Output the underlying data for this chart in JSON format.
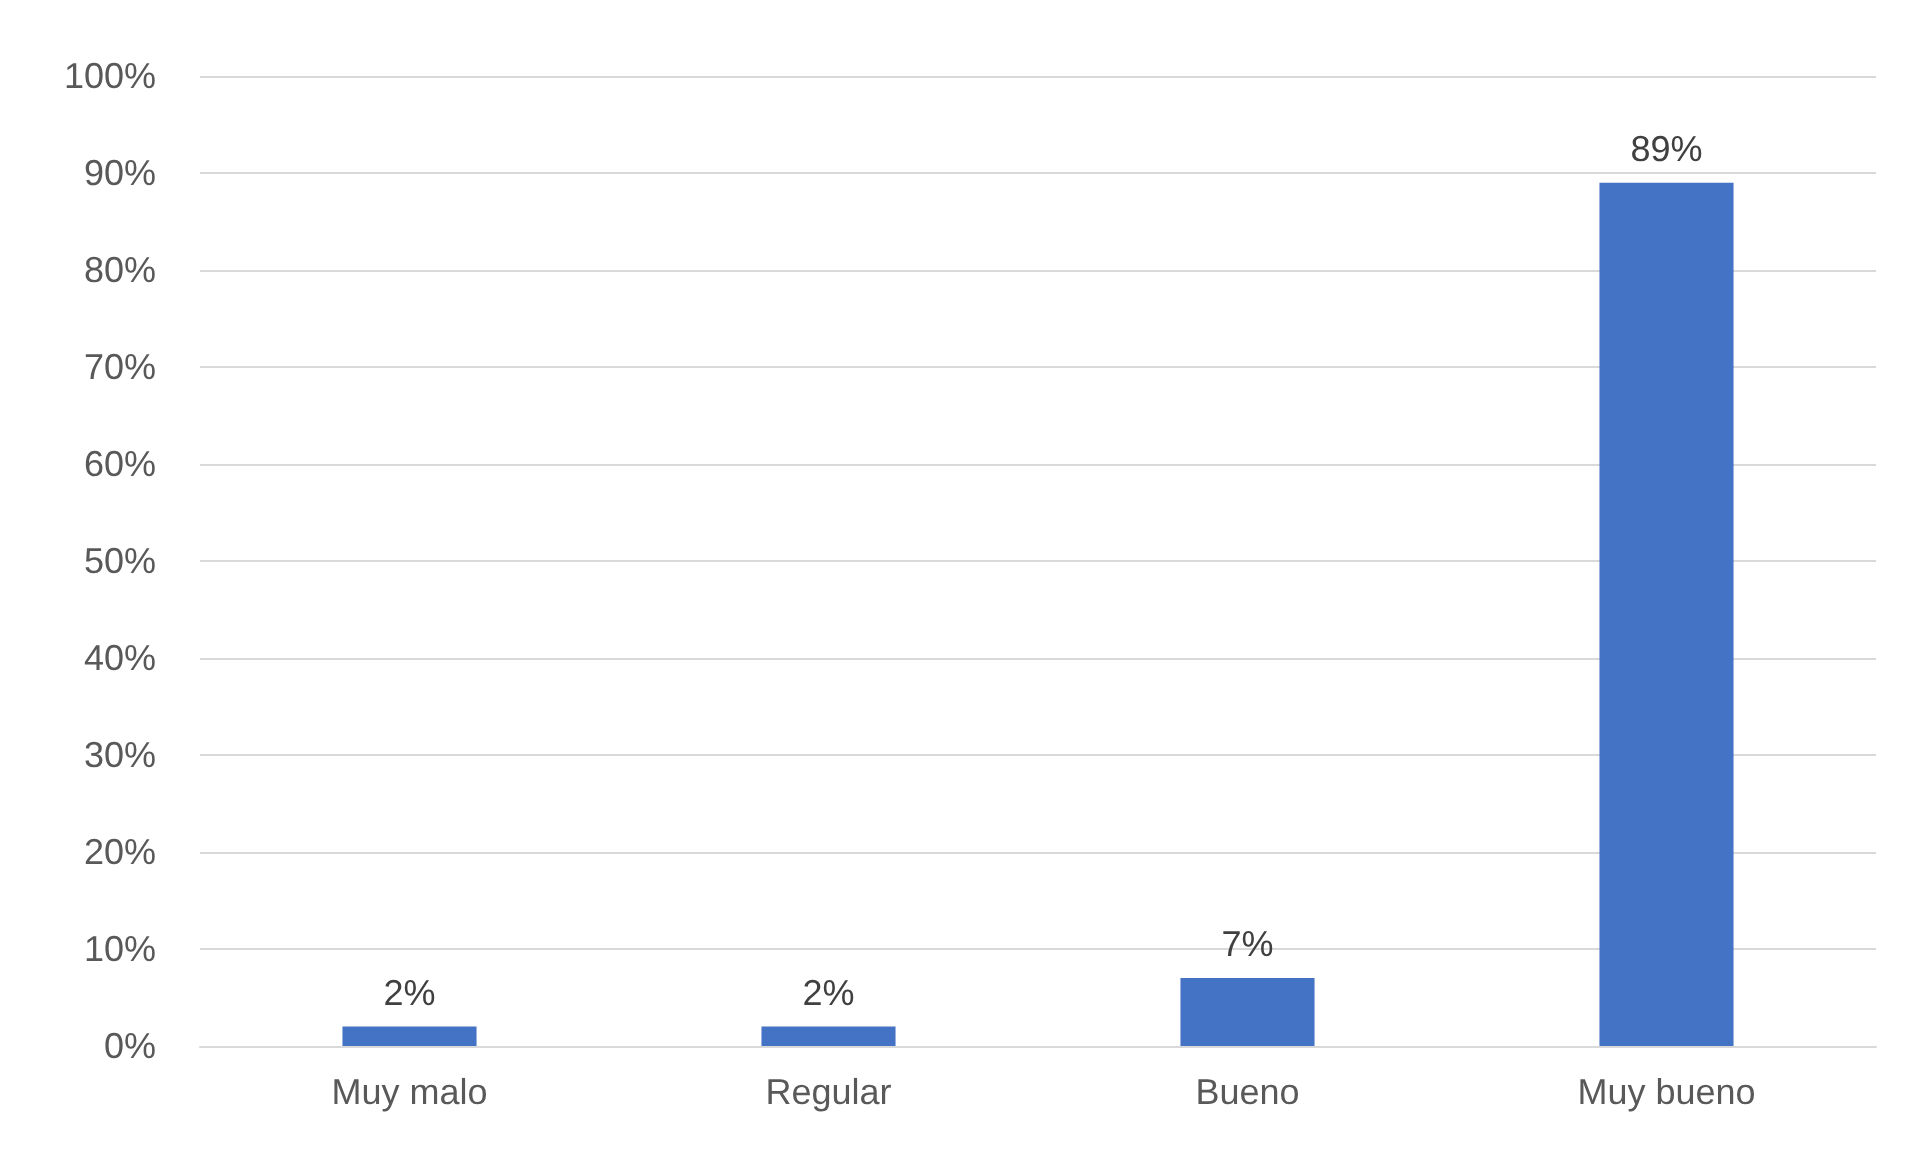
{
  "chart_data": {
    "type": "bar",
    "categories": [
      "Muy malo",
      "Regular",
      "Bueno",
      "Muy bueno"
    ],
    "values": [
      2,
      2,
      7,
      89
    ],
    "value_labels": [
      "2%",
      "2%",
      "7%",
      "89%"
    ],
    "color": "#4472c4",
    "ylim": [
      0,
      100
    ],
    "yticks": [
      {
        "value": 0,
        "label": "0%"
      },
      {
        "value": 10,
        "label": "10%"
      },
      {
        "value": 20,
        "label": "20%"
      },
      {
        "value": 30,
        "label": "30%"
      },
      {
        "value": 40,
        "label": "40%"
      },
      {
        "value": 50,
        "label": "50%"
      },
      {
        "value": 60,
        "label": "60%"
      },
      {
        "value": 70,
        "label": "70%"
      },
      {
        "value": 80,
        "label": "80%"
      },
      {
        "value": 90,
        "label": "90%"
      },
      {
        "value": 100,
        "label": "100%"
      }
    ],
    "grid": "y"
  }
}
